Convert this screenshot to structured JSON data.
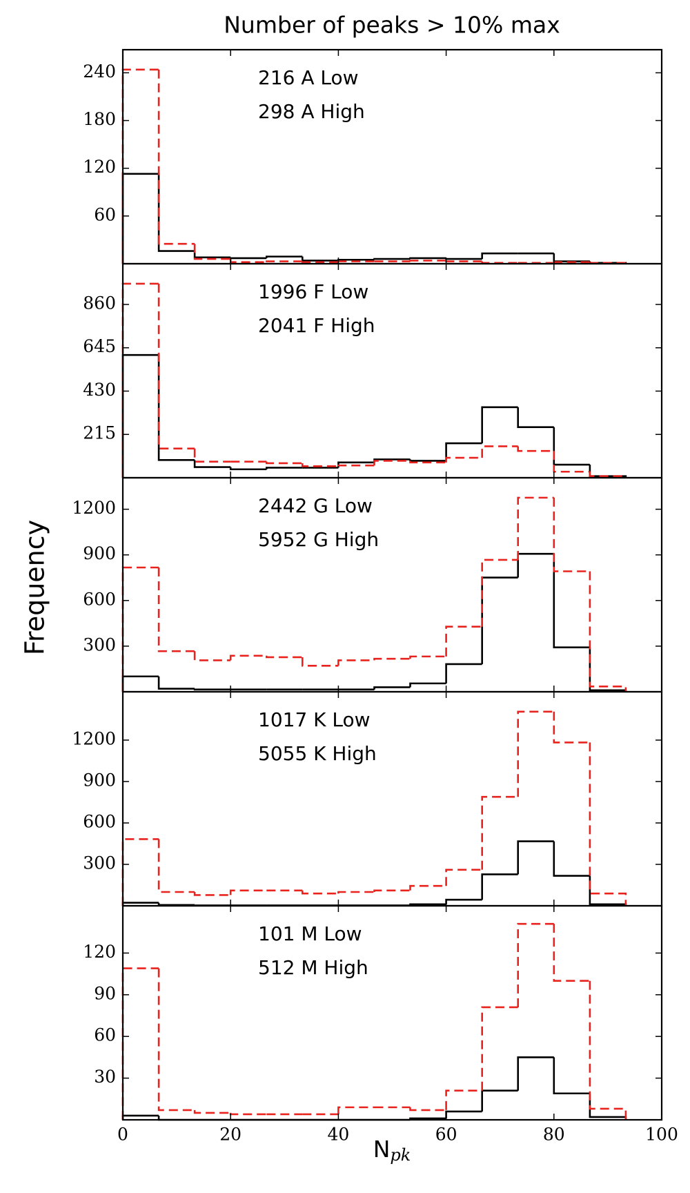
{
  "title": "Number of peaks > 10% max",
  "ylabel": "Frequency",
  "xlabel": "N",
  "xlabel_subscript": "pk",
  "chart_data": [
    {
      "type": "histogram",
      "bins": [
        0,
        6.67,
        13.33,
        20,
        26.67,
        33.33,
        40,
        46.67,
        53.33,
        60,
        66.67,
        73.33,
        80,
        86.67,
        93.33
      ],
      "series": [
        {
          "name": "216 A Low",
          "color": "#000000",
          "linestyle": "solid",
          "values": [
            113,
            16,
            8,
            7,
            9,
            4,
            5,
            6,
            7,
            6,
            13,
            13,
            3,
            1
          ]
        },
        {
          "name": "298 A High",
          "color": "#e8231e",
          "linestyle": "dashed",
          "values": [
            244,
            25,
            6,
            2,
            3,
            2,
            3,
            3,
            4,
            3,
            1,
            1,
            2,
            1
          ]
        }
      ],
      "xlim": [
        0,
        100
      ],
      "xticks": [
        0,
        20,
        40,
        60,
        80,
        100
      ],
      "ylim": [
        0,
        269
      ],
      "yticks": [
        60,
        120,
        180,
        240
      ]
    },
    {
      "type": "histogram",
      "bins": [
        0,
        6.67,
        13.33,
        20,
        26.67,
        33.33,
        40,
        46.67,
        53.33,
        60,
        66.67,
        73.33,
        80,
        86.67,
        93.33
      ],
      "series": [
        {
          "name": "1996 F Low",
          "color": "#000000",
          "linestyle": "solid",
          "values": [
            609,
            88,
            53,
            42,
            50,
            50,
            76,
            91,
            84,
            171,
            350,
            251,
            65,
            8
          ]
        },
        {
          "name": "2041 F High",
          "color": "#e8231e",
          "linestyle": "dashed",
          "values": [
            963,
            145,
            80,
            80,
            72,
            57,
            61,
            84,
            76,
            99,
            156,
            133,
            30,
            8
          ]
        }
      ],
      "xlim": [
        0,
        100
      ],
      "xticks": [
        0,
        20,
        40,
        60,
        80,
        100
      ],
      "ylim": [
        0,
        1062
      ],
      "yticks": [
        215,
        430,
        645,
        860
      ]
    },
    {
      "type": "histogram",
      "bins": [
        0,
        6.67,
        13.33,
        20,
        26.67,
        33.33,
        40,
        46.67,
        53.33,
        60,
        66.67,
        73.33,
        80,
        86.67,
        93.33
      ],
      "series": [
        {
          "name": "2442 G Low",
          "color": "#000000",
          "linestyle": "solid",
          "values": [
            101,
            20,
            15,
            15,
            15,
            15,
            15,
            30,
            55,
            182,
            751,
            907,
            292,
            10
          ]
        },
        {
          "name": "5952 G High",
          "color": "#e8231e",
          "linestyle": "dashed",
          "values": [
            817,
            267,
            207,
            237,
            227,
            171,
            207,
            217,
            232,
            428,
            867,
            1276,
            792,
            35
          ]
        }
      ],
      "xlim": [
        0,
        100
      ],
      "xticks": [
        0,
        20,
        40,
        60,
        80,
        100
      ],
      "ylim": [
        0,
        1407
      ],
      "yticks": [
        300,
        600,
        900,
        1200
      ]
    },
    {
      "type": "histogram",
      "bins": [
        0,
        6.67,
        13.33,
        20,
        26.67,
        33.33,
        40,
        46.67,
        53.33,
        60,
        66.67,
        73.33,
        80,
        86.67,
        93.33
      ],
      "series": [
        {
          "name": "1017 K Low",
          "color": "#000000",
          "linestyle": "solid",
          "values": [
            22,
            6,
            3,
            3,
            3,
            3,
            3,
            3,
            11,
            44,
            228,
            467,
            217,
            11
          ]
        },
        {
          "name": "5055 K High",
          "color": "#e8231e",
          "linestyle": "dashed",
          "values": [
            483,
            100,
            78,
            111,
            111,
            89,
            100,
            111,
            144,
            261,
            789,
            1406,
            1183,
            89
          ]
        }
      ],
      "xlim": [
        0,
        100
      ],
      "xticks": [
        0,
        20,
        40,
        60,
        80,
        100
      ],
      "ylim": [
        0,
        1550
      ],
      "yticks": [
        300,
        600,
        900,
        1200
      ]
    },
    {
      "type": "histogram",
      "bins": [
        0,
        6.67,
        13.33,
        20,
        26.67,
        33.33,
        40,
        46.67,
        53.33,
        60,
        66.67,
        73.33,
        80,
        86.67,
        93.33
      ],
      "series": [
        {
          "name": "101 M Low",
          "color": "#000000",
          "linestyle": "solid",
          "values": [
            3,
            0,
            0,
            0,
            0,
            0,
            0,
            0,
            1,
            6,
            21,
            45,
            19,
            2
          ]
        },
        {
          "name": "512 M High",
          "color": "#e8231e",
          "linestyle": "dashed",
          "values": [
            109,
            7,
            5,
            4,
            4,
            4,
            9,
            9,
            7,
            21,
            81,
            141,
            100,
            8
          ]
        }
      ],
      "xlim": [
        0,
        100
      ],
      "xticks": [
        0,
        20,
        40,
        60,
        80,
        100
      ],
      "ylim": [
        0,
        154
      ],
      "yticks": [
        30,
        60,
        90,
        120
      ]
    }
  ]
}
